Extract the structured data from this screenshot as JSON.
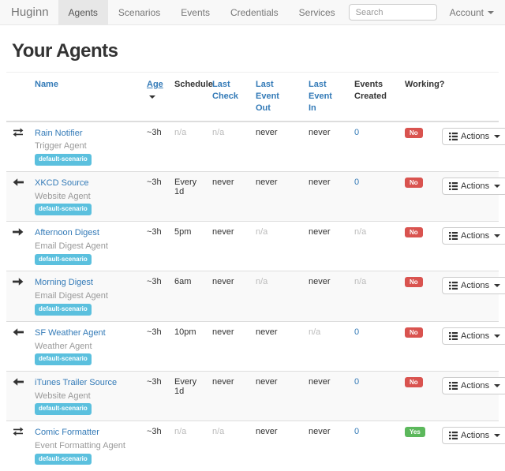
{
  "navbar": {
    "brand": "Huginn",
    "items": [
      {
        "label": "Agents",
        "active": true
      },
      {
        "label": "Scenarios",
        "active": false
      },
      {
        "label": "Events",
        "active": false
      },
      {
        "label": "Credentials",
        "active": false
      },
      {
        "label": "Services",
        "active": false
      }
    ],
    "search": {
      "placeholder": "Search"
    },
    "account": {
      "label": "Account"
    }
  },
  "page": {
    "title": "Your Agents"
  },
  "agents_table": {
    "headers": {
      "name": {
        "label": "Name",
        "link": true
      },
      "age": {
        "label": "Age",
        "link": true,
        "sorted": "desc"
      },
      "schedule": {
        "label": "Schedule",
        "link": false
      },
      "last_check": {
        "label": "Last Check",
        "link": true
      },
      "last_event_out": {
        "label": "Last Event Out",
        "link": true
      },
      "last_event_in": {
        "label": "Last Event In",
        "link": true
      },
      "events_created": {
        "label": "Events Created",
        "link": false
      },
      "working": {
        "label": "Working?",
        "link": false
      }
    },
    "actions_label": "Actions",
    "rows": [
      {
        "direction_icon": "exchange-arrows-icon",
        "name": "Rain Notifier",
        "type": "Trigger Agent",
        "scenario": "default-scenario",
        "age": "~3h",
        "schedule": {
          "text": "n/a",
          "muted": true
        },
        "last_check": {
          "text": "n/a",
          "muted": true
        },
        "last_event_out": {
          "text": "never",
          "muted": false
        },
        "last_event_in": {
          "text": "never",
          "muted": false
        },
        "events_created": {
          "text": "0",
          "link": true
        },
        "working": {
          "label": "No",
          "status": "no"
        }
      },
      {
        "direction_icon": "arrow-left-icon",
        "name": "XKCD Source",
        "type": "Website Agent",
        "scenario": "default-scenario",
        "age": "~3h",
        "schedule": {
          "text": "Every 1d",
          "muted": false
        },
        "last_check": {
          "text": "never",
          "muted": false
        },
        "last_event_out": {
          "text": "never",
          "muted": false
        },
        "last_event_in": {
          "text": "never",
          "muted": false
        },
        "events_created": {
          "text": "0",
          "link": true
        },
        "working": {
          "label": "No",
          "status": "no"
        }
      },
      {
        "direction_icon": "arrow-right-icon",
        "name": "Afternoon Digest",
        "type": "Email Digest Agent",
        "scenario": "default-scenario",
        "age": "~3h",
        "schedule": {
          "text": "5pm",
          "muted": false
        },
        "last_check": {
          "text": "never",
          "muted": false
        },
        "last_event_out": {
          "text": "n/a",
          "muted": true
        },
        "last_event_in": {
          "text": "never",
          "muted": false
        },
        "events_created": {
          "text": "n/a",
          "link": false,
          "muted": true
        },
        "working": {
          "label": "No",
          "status": "no"
        }
      },
      {
        "direction_icon": "arrow-right-icon",
        "name": "Morning Digest",
        "type": "Email Digest Agent",
        "scenario": "default-scenario",
        "age": "~3h",
        "schedule": {
          "text": "6am",
          "muted": false
        },
        "last_check": {
          "text": "never",
          "muted": false
        },
        "last_event_out": {
          "text": "n/a",
          "muted": true
        },
        "last_event_in": {
          "text": "never",
          "muted": false
        },
        "events_created": {
          "text": "n/a",
          "link": false,
          "muted": true
        },
        "working": {
          "label": "No",
          "status": "no"
        }
      },
      {
        "direction_icon": "arrow-left-icon",
        "name": "SF Weather Agent",
        "type": "Weather Agent",
        "scenario": "default-scenario",
        "age": "~3h",
        "schedule": {
          "text": "10pm",
          "muted": false
        },
        "last_check": {
          "text": "never",
          "muted": false
        },
        "last_event_out": {
          "text": "never",
          "muted": false
        },
        "last_event_in": {
          "text": "n/a",
          "muted": true
        },
        "events_created": {
          "text": "0",
          "link": true
        },
        "working": {
          "label": "No",
          "status": "no"
        }
      },
      {
        "direction_icon": "arrow-left-icon",
        "name": "iTunes Trailer Source",
        "type": "Website Agent",
        "scenario": "default-scenario",
        "age": "~3h",
        "schedule": {
          "text": "Every 1d",
          "muted": false
        },
        "last_check": {
          "text": "never",
          "muted": false
        },
        "last_event_out": {
          "text": "never",
          "muted": false
        },
        "last_event_in": {
          "text": "never",
          "muted": false
        },
        "events_created": {
          "text": "0",
          "link": true
        },
        "working": {
          "label": "No",
          "status": "no"
        }
      },
      {
        "direction_icon": "exchange-arrows-icon",
        "name": "Comic Formatter",
        "type": "Event Formatting Agent",
        "scenario": "default-scenario",
        "age": "~3h",
        "schedule": {
          "text": "n/a",
          "muted": true
        },
        "last_check": {
          "text": "n/a",
          "muted": true
        },
        "last_event_out": {
          "text": "never",
          "muted": false
        },
        "last_event_in": {
          "text": "never",
          "muted": false
        },
        "events_created": {
          "text": "0",
          "link": true
        },
        "working": {
          "label": "Yes",
          "status": "yes"
        }
      }
    ]
  },
  "colors": {
    "link_blue": "#337ab7",
    "scenario_badge": "#5bc0de",
    "working_no": "#d9534f",
    "working_yes": "#5cb85c",
    "navbar_bg": "#f8f8f8",
    "navbar_active_bg": "#e7e7e7",
    "row_stripe": "#f9f9f9",
    "muted_text": "#bbbbbb"
  }
}
